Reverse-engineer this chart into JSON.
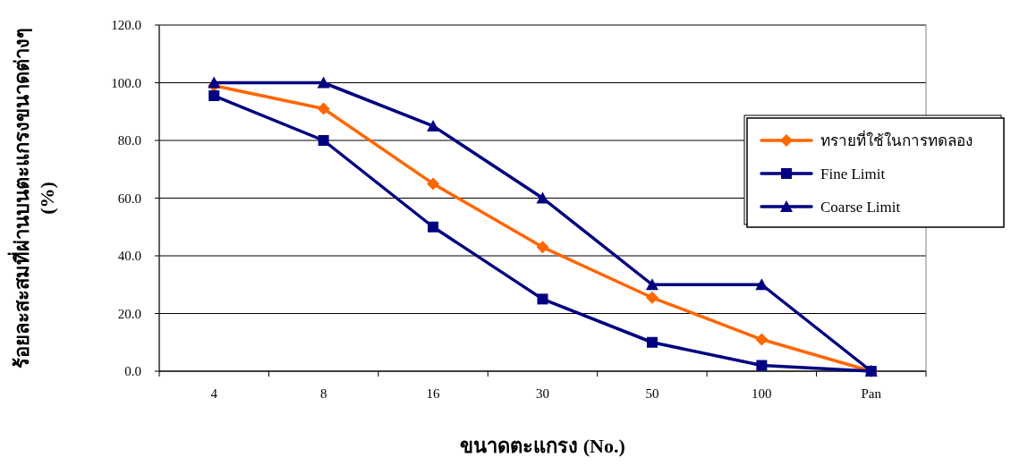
{
  "chart_data": {
    "type": "line",
    "xlabel": "ขนาดตะแกรง (No.)",
    "ylabel": "ร้อยละสะสมที่ผ่านบนตะแกรงขนาดต่างๆ (%)",
    "categories": [
      "4",
      "8",
      "16",
      "30",
      "50",
      "100",
      "Pan"
    ],
    "series": [
      {
        "name": "ทรายที่ใช้ในการทดลอง",
        "color": "#ff6600",
        "marker": "diamond",
        "values": [
          99,
          91,
          65,
          43,
          25.5,
          11,
          0
        ]
      },
      {
        "name": "Fine Limit",
        "color": "#000080",
        "marker": "square",
        "values": [
          95.5,
          80,
          50,
          25,
          10,
          2,
          0
        ]
      },
      {
        "name": "Coarse Limit",
        "color": "#000080",
        "marker": "triangle",
        "values": [
          100,
          100,
          85,
          60,
          30,
          30,
          0
        ]
      }
    ],
    "ylim": [
      0,
      120
    ],
    "yticks": [
      {
        "value": 0,
        "label": "0.0"
      },
      {
        "value": 20,
        "label": "20.0"
      },
      {
        "value": 40,
        "label": "40.0"
      },
      {
        "value": 60,
        "label": "60.0"
      },
      {
        "value": 80,
        "label": "80.0"
      },
      {
        "value": 100,
        "label": "100.0"
      },
      {
        "value": 120,
        "label": "120.0"
      }
    ],
    "grid": "y",
    "legend": "right",
    "line_style": "solid"
  }
}
